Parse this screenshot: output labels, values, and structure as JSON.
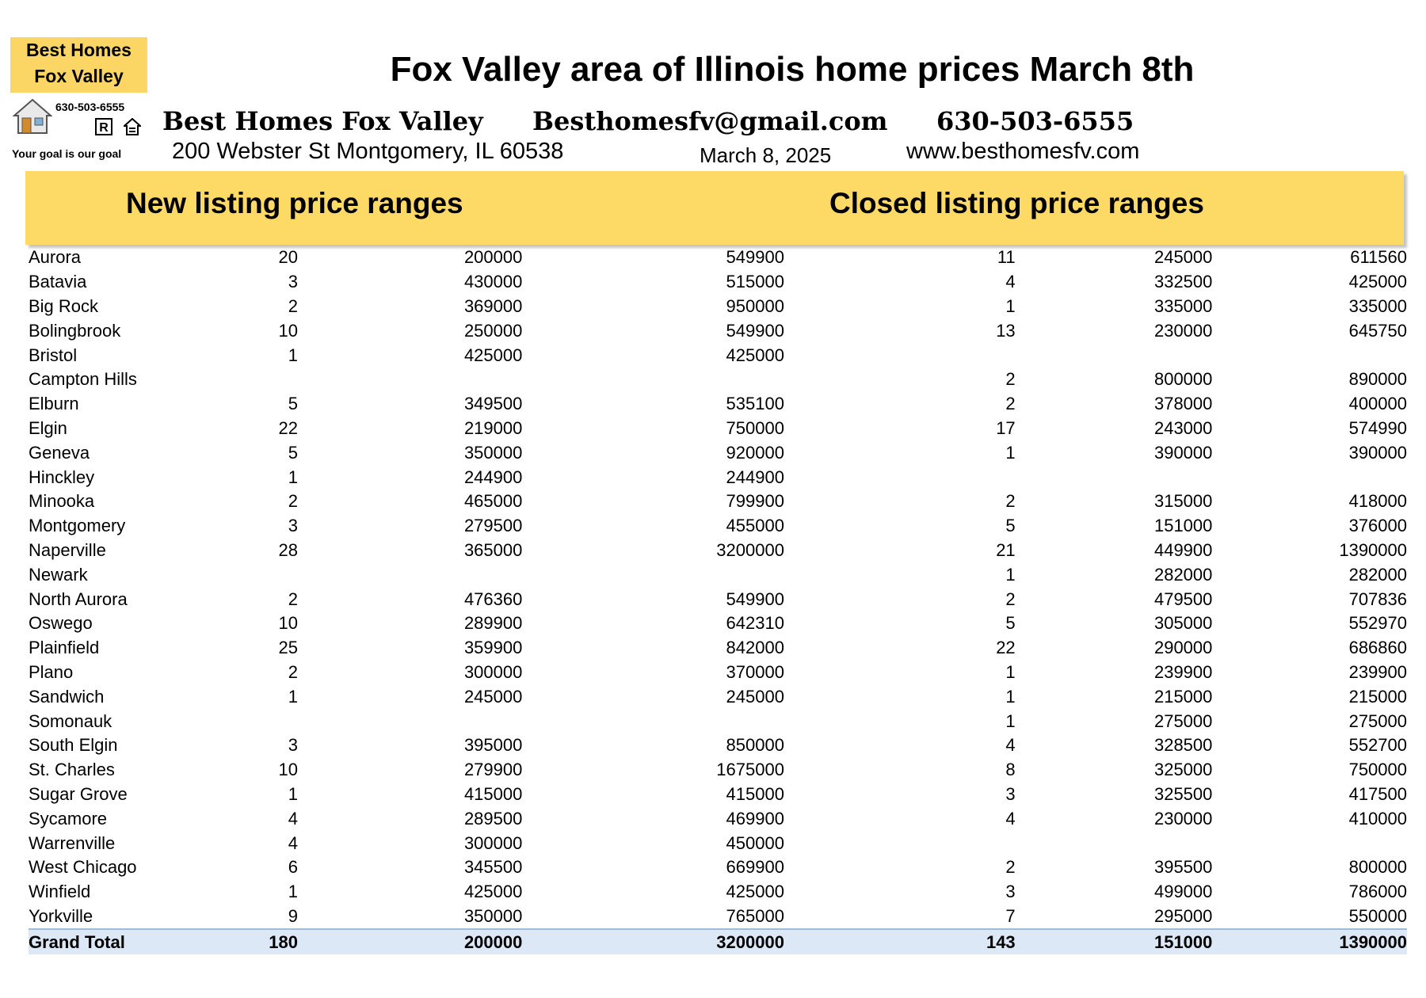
{
  "logo": {
    "line1": "Best Homes",
    "line2": "Fox Valley",
    "phone": "630-503-6555",
    "tagline": "Your goal is our goal",
    "icons": [
      "house-icon",
      "realtor-icon",
      "equal-housing-icon"
    ]
  },
  "header": {
    "title": "Fox Valley area of Illinois home prices March 8th",
    "company": "Best Homes Fox Valley",
    "email": "Besthomesfv@gmail.com",
    "phone": "630-503-6555",
    "address": "200 Webster St Montgomery, IL 60538",
    "date": "March 8, 2025",
    "website": "www.besthomesfv.com"
  },
  "sections": {
    "new_heading": "New listing price ranges",
    "closed_heading": "Closed listing price ranges"
  },
  "colors": {
    "band": "#fdd966",
    "logo_bg": "#fcd664",
    "total_row": "#dce8f5"
  },
  "rows": [
    {
      "city": "Aurora",
      "new_count": "20",
      "new_min": "200000",
      "new_max": "549900",
      "closed_count": "11",
      "closed_min": "245000",
      "closed_max": "611560"
    },
    {
      "city": "Batavia",
      "new_count": "3",
      "new_min": "430000",
      "new_max": "515000",
      "closed_count": "4",
      "closed_min": "332500",
      "closed_max": "425000"
    },
    {
      "city": "Big Rock",
      "new_count": "2",
      "new_min": "369000",
      "new_max": "950000",
      "closed_count": "1",
      "closed_min": "335000",
      "closed_max": "335000"
    },
    {
      "city": "Bolingbrook",
      "new_count": "10",
      "new_min": "250000",
      "new_max": "549900",
      "closed_count": "13",
      "closed_min": "230000",
      "closed_max": "645750"
    },
    {
      "city": "Bristol",
      "new_count": "1",
      "new_min": "425000",
      "new_max": "425000",
      "closed_count": "",
      "closed_min": "",
      "closed_max": ""
    },
    {
      "city": "Campton Hills",
      "new_count": "",
      "new_min": "",
      "new_max": "",
      "closed_count": "2",
      "closed_min": "800000",
      "closed_max": "890000"
    },
    {
      "city": "Elburn",
      "new_count": "5",
      "new_min": "349500",
      "new_max": "535100",
      "closed_count": "2",
      "closed_min": "378000",
      "closed_max": "400000"
    },
    {
      "city": "Elgin",
      "new_count": "22",
      "new_min": "219000",
      "new_max": "750000",
      "closed_count": "17",
      "closed_min": "243000",
      "closed_max": "574990"
    },
    {
      "city": "Geneva",
      "new_count": "5",
      "new_min": "350000",
      "new_max": "920000",
      "closed_count": "1",
      "closed_min": "390000",
      "closed_max": "390000"
    },
    {
      "city": "Hinckley",
      "new_count": "1",
      "new_min": "244900",
      "new_max": "244900",
      "closed_count": "",
      "closed_min": "",
      "closed_max": ""
    },
    {
      "city": "Minooka",
      "new_count": "2",
      "new_min": "465000",
      "new_max": "799900",
      "closed_count": "2",
      "closed_min": "315000",
      "closed_max": "418000"
    },
    {
      "city": "Montgomery",
      "new_count": "3",
      "new_min": "279500",
      "new_max": "455000",
      "closed_count": "5",
      "closed_min": "151000",
      "closed_max": "376000"
    },
    {
      "city": "Naperville",
      "new_count": "28",
      "new_min": "365000",
      "new_max": "3200000",
      "closed_count": "21",
      "closed_min": "449900",
      "closed_max": "1390000"
    },
    {
      "city": "Newark",
      "new_count": "",
      "new_min": "",
      "new_max": "",
      "closed_count": "1",
      "closed_min": "282000",
      "closed_max": "282000"
    },
    {
      "city": "North Aurora",
      "new_count": "2",
      "new_min": "476360",
      "new_max": "549900",
      "closed_count": "2",
      "closed_min": "479500",
      "closed_max": "707836"
    },
    {
      "city": "Oswego",
      "new_count": "10",
      "new_min": "289900",
      "new_max": "642310",
      "closed_count": "5",
      "closed_min": "305000",
      "closed_max": "552970"
    },
    {
      "city": "Plainfield",
      "new_count": "25",
      "new_min": "359900",
      "new_max": "842000",
      "closed_count": "22",
      "closed_min": "290000",
      "closed_max": "686860"
    },
    {
      "city": "Plano",
      "new_count": "2",
      "new_min": "300000",
      "new_max": "370000",
      "closed_count": "1",
      "closed_min": "239900",
      "closed_max": "239900"
    },
    {
      "city": "Sandwich",
      "new_count": "1",
      "new_min": "245000",
      "new_max": "245000",
      "closed_count": "1",
      "closed_min": "215000",
      "closed_max": "215000"
    },
    {
      "city": "Somonauk",
      "new_count": "",
      "new_min": "",
      "new_max": "",
      "closed_count": "1",
      "closed_min": "275000",
      "closed_max": "275000"
    },
    {
      "city": "South Elgin",
      "new_count": "3",
      "new_min": "395000",
      "new_max": "850000",
      "closed_count": "4",
      "closed_min": "328500",
      "closed_max": "552700"
    },
    {
      "city": "St. Charles",
      "new_count": "10",
      "new_min": "279900",
      "new_max": "1675000",
      "closed_count": "8",
      "closed_min": "325000",
      "closed_max": "750000"
    },
    {
      "city": "Sugar Grove",
      "new_count": "1",
      "new_min": "415000",
      "new_max": "415000",
      "closed_count": "3",
      "closed_min": "325500",
      "closed_max": "417500"
    },
    {
      "city": "Sycamore",
      "new_count": "4",
      "new_min": "289500",
      "new_max": "469900",
      "closed_count": "4",
      "closed_min": "230000",
      "closed_max": "410000"
    },
    {
      "city": "Warrenville",
      "new_count": "4",
      "new_min": "300000",
      "new_max": "450000",
      "closed_count": "",
      "closed_min": "",
      "closed_max": ""
    },
    {
      "city": "West Chicago",
      "new_count": "6",
      "new_min": "345500",
      "new_max": "669900",
      "closed_count": "2",
      "closed_min": "395500",
      "closed_max": "800000"
    },
    {
      "city": "Winfield",
      "new_count": "1",
      "new_min": "425000",
      "new_max": "425000",
      "closed_count": "3",
      "closed_min": "499000",
      "closed_max": "786000"
    },
    {
      "city": "Yorkville",
      "new_count": "9",
      "new_min": "350000",
      "new_max": "765000",
      "closed_count": "7",
      "closed_min": "295000",
      "closed_max": "550000"
    }
  ],
  "total": {
    "city": "Grand Total",
    "new_count": "180",
    "new_min": "200000",
    "new_max": "3200000",
    "closed_count": "143",
    "closed_min": "151000",
    "closed_max": "1390000"
  }
}
